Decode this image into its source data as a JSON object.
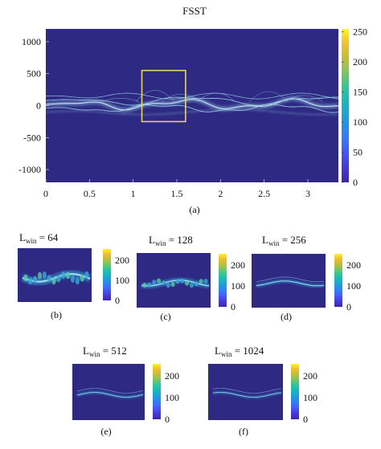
{
  "colors": {
    "background": "#2e2a83",
    "trace": "#9fd8f0",
    "trace_bright": "#e8fbff",
    "roi_box": "#e2d46a"
  },
  "colormap": [
    "#3e26a8",
    "#4538d4",
    "#4751f2",
    "#3a73fb",
    "#268ee9",
    "#1aa9d0",
    "#19bdb5",
    "#3cc68e",
    "#86c659",
    "#c6bd36",
    "#f2c02f",
    "#f9f920"
  ],
  "chart_data": [
    {
      "type": "heatmap",
      "panel": "(a)",
      "title": "FSST",
      "xlim": [
        0,
        3.35
      ],
      "ylim": [
        -1200,
        1200
      ],
      "x_ticks": [
        0,
        0.5,
        1,
        1.5,
        2,
        2.5,
        3
      ],
      "x_tick_labels": [
        "0",
        "0.5",
        "1",
        "1.5",
        "2",
        "2.5",
        "3"
      ],
      "y_ticks": [
        1000,
        500,
        0,
        -500,
        -1000
      ],
      "y_tick_labels": [
        "1000",
        "500",
        "0",
        "-500",
        "-1000"
      ],
      "colorbar": {
        "range": [
          0,
          255
        ],
        "ticks": [
          0,
          50,
          100,
          150,
          200,
          250
        ],
        "tick_labels": [
          "0",
          "50",
          "100",
          "150",
          "200",
          "250"
        ]
      },
      "highlight_box": {
        "x": [
          1.1,
          1.6
        ],
        "y": [
          -250,
          550
        ]
      },
      "caption": "(a)"
    },
    {
      "type": "heatmap",
      "panel": "(b)",
      "title_main": "L",
      "title_sub": "win",
      "title_value": " = 64",
      "caption": "(b)",
      "colorbar_tick_labels": [
        "200",
        "100",
        "0"
      ]
    },
    {
      "type": "heatmap",
      "panel": "(c)",
      "title_main": "L",
      "title_sub": "win",
      "title_value": " = 128",
      "caption": "(c)",
      "colorbar_tick_labels": [
        "200",
        "100",
        "0"
      ]
    },
    {
      "type": "heatmap",
      "panel": "(d)",
      "title_main": "L",
      "title_sub": "win",
      "title_value": " = 256",
      "caption": "(d)",
      "colorbar_tick_labels": [
        "200",
        "100",
        "0"
      ]
    },
    {
      "type": "heatmap",
      "panel": "(e)",
      "title_main": "L",
      "title_sub": "win",
      "title_value": " = 512",
      "caption": "(e)",
      "colorbar_tick_labels": [
        "200",
        "100",
        "0"
      ]
    },
    {
      "type": "heatmap",
      "panel": "(f)",
      "title_main": "L",
      "title_sub": "win",
      "title_value": " = 1024",
      "caption": "(f)",
      "colorbar_tick_labels": [
        "200",
        "100",
        "0"
      ]
    }
  ]
}
